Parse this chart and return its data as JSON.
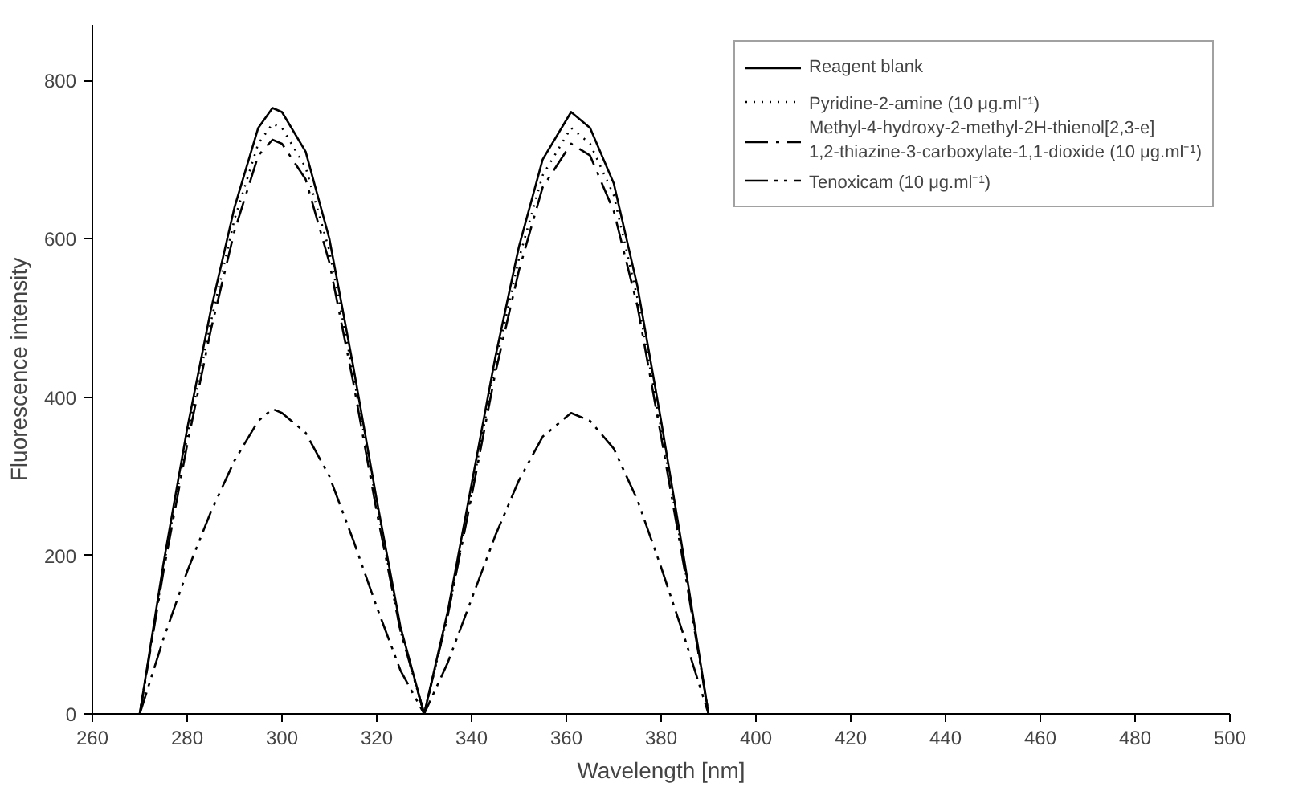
{
  "chart_data": {
    "type": "line",
    "xlabel": "Wavelength [nm]",
    "ylabel": "Fluorescence intensity",
    "xlim": [
      260,
      500
    ],
    "ylim": [
      0,
      870
    ],
    "xticks": [
      260,
      280,
      300,
      320,
      340,
      360,
      380,
      400,
      420,
      440,
      460,
      480,
      500
    ],
    "yticks": [
      0,
      200,
      400,
      600,
      800
    ],
    "grid": false,
    "legend": "top right",
    "marker": "none",
    "x": [
      270,
      275,
      280,
      285,
      290,
      295,
      298,
      300,
      305,
      310,
      315,
      320,
      325,
      330,
      335,
      340,
      345,
      350,
      355,
      361,
      365,
      370,
      375,
      380,
      385,
      390
    ],
    "series": [
      {
        "name": "Reagent blank",
        "color": "#000000",
        "line_style": "solid",
        "values": [
          0,
          190,
          360,
          510,
          640,
          740,
          765,
          760,
          710,
          600,
          440,
          270,
          110,
          0,
          130,
          290,
          450,
          590,
          700,
          760,
          740,
          670,
          540,
          370,
          190,
          0
        ]
      },
      {
        "name": "Pyridine-2-amine (10 μg.ml⁻¹)",
        "color": "#000000",
        "line_style": "dotted",
        "values": [
          0,
          185,
          350,
          495,
          625,
          720,
          745,
          740,
          690,
          585,
          430,
          265,
          105,
          0,
          125,
          280,
          440,
          575,
          680,
          740,
          720,
          655,
          525,
          360,
          185,
          0
        ]
      },
      {
        "name": "Methyl-4-hydroxy-2-methyl-2H-thienol[2,3-e]\n1,2-thiazine-3-carboxylate-1,1-dioxide (10 μg.ml⁻¹)",
        "color": "#000000",
        "line_style": "dashdot",
        "values": [
          0,
          180,
          340,
          485,
          610,
          705,
          725,
          720,
          675,
          570,
          420,
          255,
          105,
          0,
          125,
          275,
          430,
          560,
          665,
          720,
          705,
          635,
          515,
          350,
          180,
          0
        ]
      },
      {
        "name": "Tenoxicam (10 μg.ml⁻¹)",
        "color": "#000000",
        "line_style": "dashed",
        "values": [
          0,
          95,
          180,
          255,
          320,
          370,
          385,
          380,
          355,
          300,
          220,
          135,
          55,
          0,
          65,
          145,
          225,
          295,
          350,
          380,
          370,
          335,
          270,
          185,
          95,
          0
        ]
      }
    ]
  }
}
